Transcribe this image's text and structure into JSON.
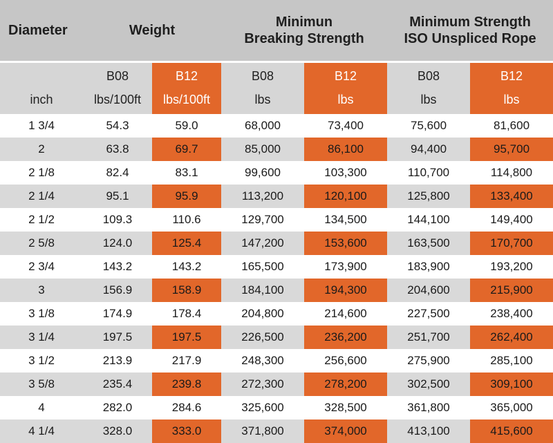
{
  "header": {
    "diameter": "Diameter",
    "weight": "Weight",
    "mbs_line1": "Minimun",
    "mbs_line2": "Breaking Strength",
    "iso_line1": "Minimum Strength",
    "iso_line2": "ISO Unspliced Rope"
  },
  "grades": [
    "B08",
    "B12",
    "B08",
    "B12",
    "B08",
    "B12"
  ],
  "units": {
    "diameter": "inch",
    "weight_b08": "lbs/100ft",
    "weight_b12": "lbs/100ft",
    "mbs_b08": "lbs",
    "mbs_b12": "lbs",
    "iso_b08": "lbs",
    "iso_b12": "lbs"
  },
  "colors": {
    "highlight": "#e2672a",
    "header_bg": "#c6c6c6",
    "row_alt": "#d9d9d9"
  },
  "rows": [
    {
      "diameter": "1 3/4",
      "w_b08": "54.3",
      "w_b12": "59.0",
      "mbs_b08": "68,000",
      "mbs_b12": "73,400",
      "iso_b08": "75,600",
      "iso_b12": "81,600"
    },
    {
      "diameter": "2",
      "w_b08": "63.8",
      "w_b12": "69.7",
      "mbs_b08": "85,000",
      "mbs_b12": "86,100",
      "iso_b08": "94,400",
      "iso_b12": "95,700"
    },
    {
      "diameter": "2 1/8",
      "w_b08": "82.4",
      "w_b12": "83.1",
      "mbs_b08": "99,600",
      "mbs_b12": "103,300",
      "iso_b08": "110,700",
      "iso_b12": "114,800"
    },
    {
      "diameter": "2 1/4",
      "w_b08": "95.1",
      "w_b12": "95.9",
      "mbs_b08": "113,200",
      "mbs_b12": "120,100",
      "iso_b08": "125,800",
      "iso_b12": "133,400"
    },
    {
      "diameter": "2 1/2",
      "w_b08": "109.3",
      "w_b12": "110.6",
      "mbs_b08": "129,700",
      "mbs_b12": "134,500",
      "iso_b08": "144,100",
      "iso_b12": "149,400"
    },
    {
      "diameter": "2 5/8",
      "w_b08": "124.0",
      "w_b12": "125.4",
      "mbs_b08": "147,200",
      "mbs_b12": "153,600",
      "iso_b08": "163,500",
      "iso_b12": "170,700"
    },
    {
      "diameter": "2 3/4",
      "w_b08": "143.2",
      "w_b12": "143.2",
      "mbs_b08": "165,500",
      "mbs_b12": "173,900",
      "iso_b08": "183,900",
      "iso_b12": "193,200"
    },
    {
      "diameter": "3",
      "w_b08": "156.9",
      "w_b12": "158.9",
      "mbs_b08": "184,100",
      "mbs_b12": "194,300",
      "iso_b08": "204,600",
      "iso_b12": "215,900"
    },
    {
      "diameter": "3 1/8",
      "w_b08": "174.9",
      "w_b12": "178.4",
      "mbs_b08": "204,800",
      "mbs_b12": "214,600",
      "iso_b08": "227,500",
      "iso_b12": "238,400"
    },
    {
      "diameter": "3 1/4",
      "w_b08": "197.5",
      "w_b12": "197.5",
      "mbs_b08": "226,500",
      "mbs_b12": "236,200",
      "iso_b08": "251,700",
      "iso_b12": "262,400"
    },
    {
      "diameter": "3 1/2",
      "w_b08": "213.9",
      "w_b12": "217.9",
      "mbs_b08": "248,300",
      "mbs_b12": "256,600",
      "iso_b08": "275,900",
      "iso_b12": "285,100"
    },
    {
      "diameter": "3 5/8",
      "w_b08": "235.4",
      "w_b12": "239.8",
      "mbs_b08": "272,300",
      "mbs_b12": "278,200",
      "iso_b08": "302,500",
      "iso_b12": "309,100"
    },
    {
      "diameter": "4",
      "w_b08": "282.0",
      "w_b12": "284.6",
      "mbs_b08": "325,600",
      "mbs_b12": "328,500",
      "iso_b08": "361,800",
      "iso_b12": "365,000"
    },
    {
      "diameter": "4 1/4",
      "w_b08": "328.0",
      "w_b12": "333.0",
      "mbs_b08": "371,800",
      "mbs_b12": "374,000",
      "iso_b08": "413,100",
      "iso_b12": "415,600"
    }
  ]
}
